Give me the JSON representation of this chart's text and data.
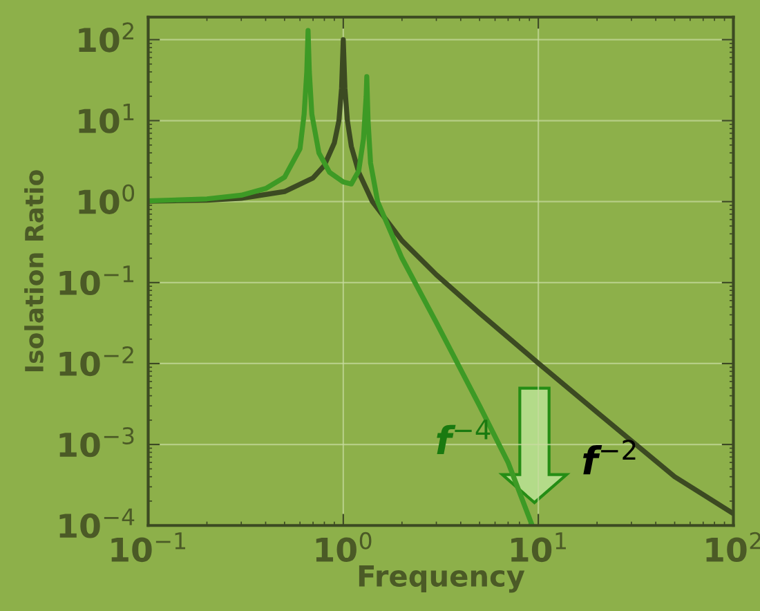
{
  "chart_data": {
    "type": "line",
    "xlabel": "Frequency",
    "ylabel": "Isolation Ratio",
    "log": "xy",
    "grid": true,
    "legend": false,
    "marker": "none",
    "line_style": "solid",
    "xlim": [
      0.1,
      100
    ],
    "ylim": [
      0.0001,
      190
    ],
    "xticks": [
      {
        "value": 0.1,
        "label": "10$^{−1}$"
      },
      {
        "value": 1,
        "label": "10$^{0}$"
      },
      {
        "value": 10,
        "label": "10$^{1}$"
      },
      {
        "value": 100,
        "label": "10$^{2}$"
      }
    ],
    "yticks": [
      {
        "value": 0.0001,
        "label": "10$^{−4}$"
      },
      {
        "value": 0.001,
        "label": "10$^{−3}$"
      },
      {
        "value": 0.01,
        "label": "10$^{−2}$"
      },
      {
        "value": 0.1,
        "label": "10$^{−1}$"
      },
      {
        "value": 1,
        "label": "10$^{0}$"
      },
      {
        "value": 10,
        "label": "10$^{1}$"
      },
      {
        "value": 100,
        "label": "10$^{2}$"
      }
    ],
    "series": [
      {
        "color": "#3c4a22",
        "x": [
          0.1,
          0.2,
          0.3,
          0.5,
          0.7,
          0.8,
          0.9,
          0.95,
          0.98,
          1.0,
          1.02,
          1.05,
          1.1,
          1.2,
          1.41,
          2,
          3,
          5,
          10,
          20,
          50,
          100
        ],
        "values": [
          1.01,
          1.04,
          1.1,
          1.33,
          1.96,
          2.8,
          5.3,
          10,
          25,
          100,
          25,
          10,
          4.8,
          2.3,
          1.0,
          0.33,
          0.125,
          0.042,
          0.0101,
          0.0025,
          0.0004,
          0.00014
        ]
      },
      {
        "color": "#3d9a25",
        "x": [
          0.1,
          0.2,
          0.3,
          0.4,
          0.5,
          0.6,
          0.63,
          0.65,
          0.66,
          0.67,
          0.69,
          0.75,
          0.85,
          1.0,
          1.1,
          1.2,
          1.27,
          1.31,
          1.32,
          1.34,
          1.38,
          1.5,
          2,
          3,
          5,
          7,
          9.3
        ],
        "values": [
          1.02,
          1.08,
          1.2,
          1.45,
          2.0,
          4.5,
          12,
          40,
          130,
          40,
          12,
          4,
          2.3,
          1.75,
          1.65,
          2.4,
          6,
          20,
          35,
          10,
          3,
          1.0,
          0.2,
          0.032,
          0.003,
          0.0006,
          0.0001
        ]
      }
    ],
    "annotations": [
      "f$^{−4}$",
      "f$^{−2}$"
    ]
  }
}
